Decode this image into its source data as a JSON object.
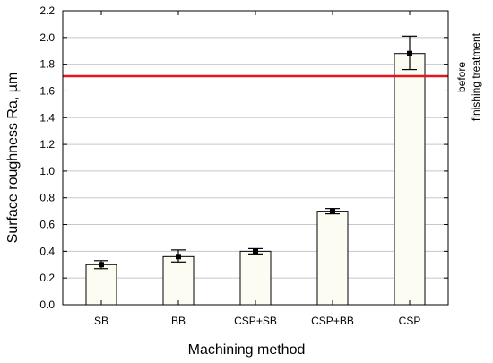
{
  "chart_data": {
    "type": "bar",
    "xlabel": "Machining method",
    "ylabel": "Surface roughness Ra, µm",
    "ylim": [
      0,
      2.2
    ],
    "yticks": [
      "0.0",
      "0.2",
      "0.4",
      "0.6",
      "0.8",
      "1.0",
      "1.2",
      "1.4",
      "1.6",
      "1.8",
      "2.0",
      "2.2"
    ],
    "grid": true,
    "categories": [
      "SB",
      "BB",
      "CSP+SB",
      "CSP+BB",
      "CSP"
    ],
    "values": [
      0.3,
      0.36,
      0.4,
      0.7,
      1.88
    ],
    "error_low": [
      0.27,
      0.32,
      0.38,
      0.68,
      1.76
    ],
    "error_high": [
      0.33,
      0.41,
      0.42,
      0.72,
      2.01
    ],
    "reference_line": {
      "value": 1.71,
      "label_line1": "before",
      "label_line2": "finishing treatment",
      "color": "#e8141c"
    },
    "bar_color": "#fdfcf3",
    "bar_edge_color": "#000000"
  }
}
